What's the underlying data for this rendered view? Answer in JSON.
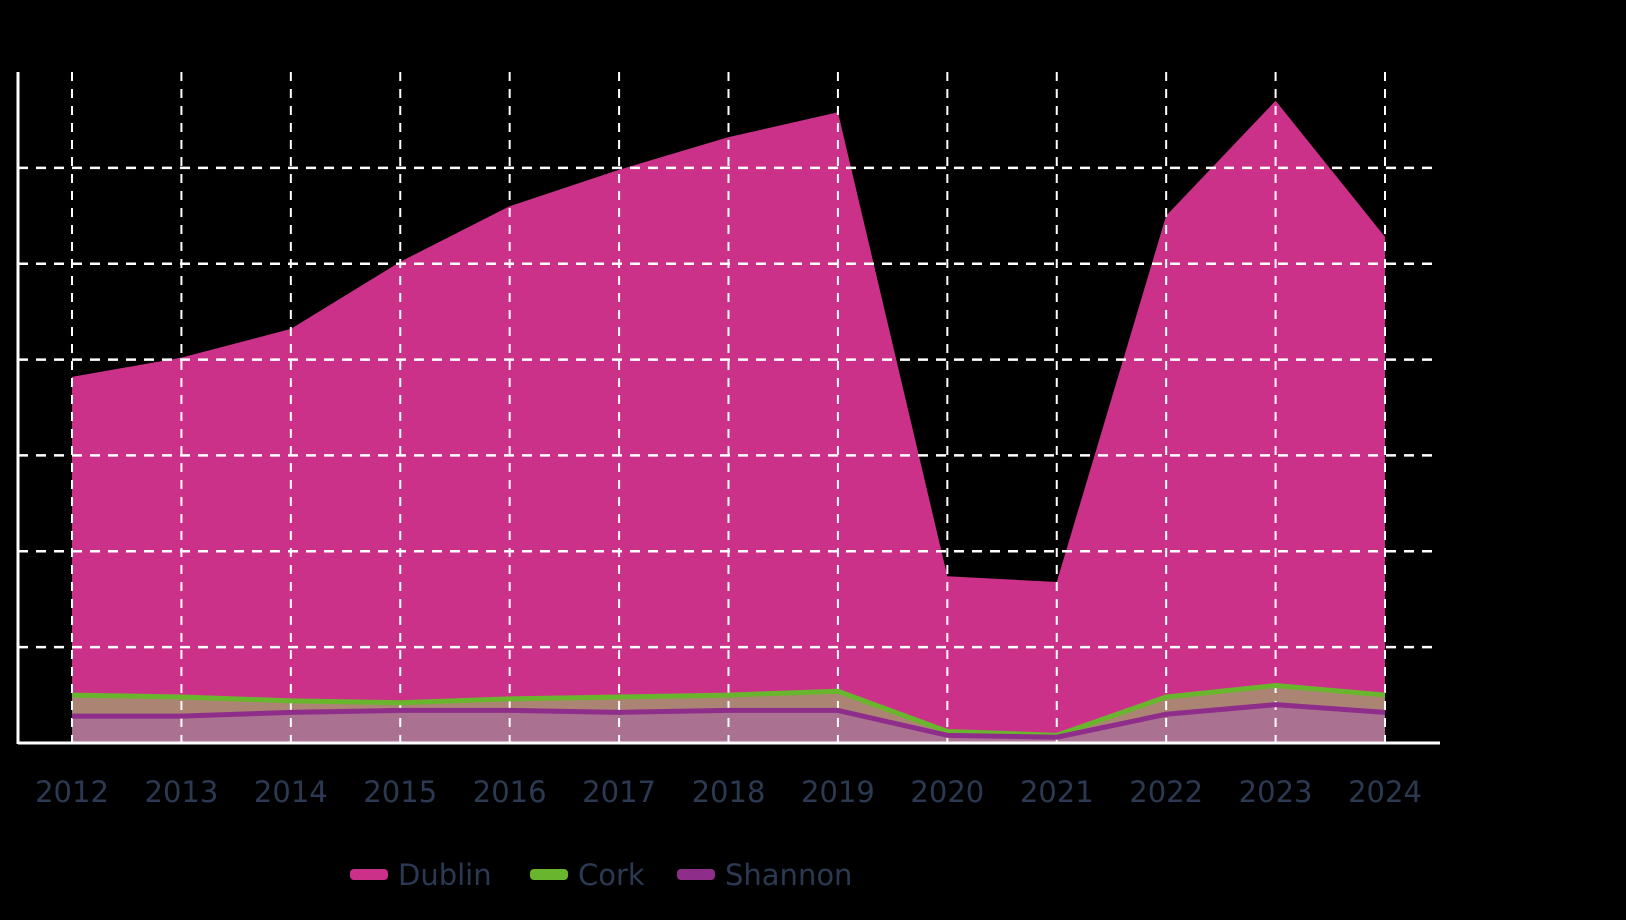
{
  "chart_data": {
    "type": "area",
    "x": [
      "2012",
      "2013",
      "2014",
      "2015",
      "2016",
      "2017",
      "2018",
      "2019",
      "2020",
      "2021",
      "2022",
      "2023",
      "2024"
    ],
    "series": [
      {
        "name": "Dublin",
        "color": "#cc318a",
        "values": [
          19.1,
          20.1,
          21.6,
          25.1,
          28.0,
          29.9,
          31.6,
          32.9,
          8.7,
          8.4,
          27.5,
          33.5,
          26.4
        ]
      },
      {
        "name": "Cork",
        "color": "#6ab52e",
        "values": [
          2.5,
          2.4,
          2.2,
          2.1,
          2.3,
          2.4,
          2.5,
          2.7,
          0.6,
          0.4,
          2.4,
          3.0,
          2.5
        ]
      },
      {
        "name": "Shannon",
        "color": "#8e2e8a",
        "values": [
          1.4,
          1.4,
          1.6,
          1.7,
          1.7,
          1.6,
          1.7,
          1.7,
          0.4,
          0.3,
          1.5,
          2.0,
          1.6
        ]
      }
    ],
    "ylim": [
      0,
      35
    ],
    "grid": true,
    "legend_position": "bottom-center"
  }
}
